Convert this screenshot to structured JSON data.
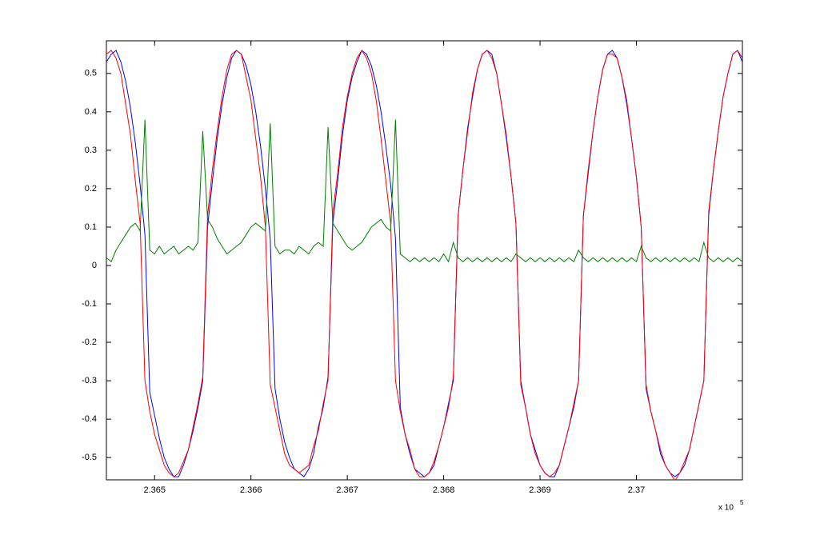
{
  "chart_data": {
    "type": "line",
    "x": [
      2.3645,
      2.36455,
      2.3646,
      2.36465,
      2.3647,
      2.36475,
      2.3648,
      2.36485,
      2.3649,
      2.36495,
      2.365,
      2.36505,
      2.3651,
      2.36515,
      2.3652,
      2.36525,
      2.3653,
      2.36535,
      2.3654,
      2.36545,
      2.3655,
      2.36555,
      2.3656,
      2.36565,
      2.3657,
      2.36575,
      2.3658,
      2.36585,
      2.3659,
      2.36595,
      2.366,
      2.36605,
      2.3661,
      2.36615,
      2.3662,
      2.36625,
      2.3663,
      2.36635,
      2.3664,
      2.36645,
      2.3665,
      2.36655,
      2.3666,
      2.36665,
      2.3667,
      2.36675,
      2.3668,
      2.36685,
      2.3669,
      2.36695,
      2.367,
      2.36705,
      2.3671,
      2.36715,
      2.3672,
      2.36725,
      2.3673,
      2.36735,
      2.3674,
      2.36745,
      2.3675,
      2.36755,
      2.3676,
      2.36765,
      2.3677,
      2.36775,
      2.3678,
      2.36785,
      2.3679,
      2.36795,
      2.368,
      2.36805,
      2.3681,
      2.36815,
      2.3682,
      2.36825,
      2.3683,
      2.36835,
      2.3684,
      2.36845,
      2.3685,
      2.36855,
      2.3686,
      2.36865,
      2.3687,
      2.36875,
      2.3688,
      2.36885,
      2.3689,
      2.36895,
      2.369,
      2.36905,
      2.3691,
      2.36915,
      2.3692,
      2.36925,
      2.3693,
      2.36935,
      2.3694,
      2.36945,
      2.3695,
      2.36955,
      2.3696,
      2.36965,
      2.3697,
      2.36975,
      2.3698,
      2.36985,
      2.3699,
      2.36995,
      2.37,
      2.37005,
      2.3701,
      2.37015,
      2.3702,
      2.37025,
      2.3703,
      2.37035,
      2.3704,
      2.37045,
      2.3705,
      2.37055,
      2.3706,
      2.37065,
      2.3707,
      2.37075,
      2.3708,
      2.37085,
      2.3709,
      2.37095,
      2.371,
      2.37105,
      2.3711
    ],
    "series": [
      {
        "color": "#0000ff",
        "values": [
          0.53,
          0.55,
          0.56,
          0.53,
          0.48,
          0.41,
          0.32,
          0.21,
          0.08,
          -0.33,
          -0.39,
          -0.45,
          -0.5,
          -0.53,
          -0.55,
          -0.55,
          -0.52,
          -0.48,
          -0.43,
          -0.37,
          -0.3,
          0.1,
          0.22,
          0.33,
          0.42,
          0.49,
          0.54,
          0.56,
          0.55,
          0.52,
          0.47,
          0.4,
          0.31,
          0.2,
          0.07,
          -0.32,
          -0.4,
          -0.46,
          -0.5,
          -0.53,
          -0.54,
          -0.55,
          -0.53,
          -0.49,
          -0.42,
          -0.37,
          -0.29,
          0.11,
          0.22,
          0.34,
          0.43,
          0.49,
          0.53,
          0.56,
          0.55,
          0.52,
          0.47,
          0.4,
          0.31,
          0.21,
          0.07,
          -0.37,
          -0.44,
          -0.49,
          -0.53,
          -0.54,
          -0.55,
          -0.54,
          -0.52,
          -0.47,
          -0.42,
          -0.36,
          -0.3,
          0.13,
          0.25,
          0.36,
          0.44,
          0.51,
          0.55,
          0.56,
          0.55,
          0.5,
          0.42,
          0.33,
          0.23,
          0.11,
          -0.3,
          -0.37,
          -0.44,
          -0.48,
          -0.52,
          -0.54,
          -0.55,
          -0.55,
          -0.52,
          -0.47,
          -0.42,
          -0.37,
          -0.3,
          0.13,
          0.24,
          0.35,
          0.44,
          0.51,
          0.55,
          0.56,
          0.54,
          0.49,
          0.42,
          0.33,
          0.23,
          0.1,
          -0.32,
          -0.38,
          -0.43,
          -0.49,
          -0.52,
          -0.54,
          -0.55,
          -0.54,
          -0.52,
          -0.48,
          -0.42,
          -0.36,
          -0.3,
          0.13,
          0.25,
          0.35,
          0.44,
          0.5,
          0.55,
          0.56,
          0.53
        ]
      },
      {
        "color": "#ff0000",
        "values": [
          0.55,
          0.56,
          0.54,
          0.5,
          0.42,
          0.34,
          0.22,
          0.11,
          -0.3,
          -0.38,
          -0.44,
          -0.48,
          -0.52,
          -0.54,
          -0.55,
          -0.54,
          -0.51,
          -0.48,
          -0.42,
          -0.36,
          -0.29,
          0.13,
          0.25,
          0.35,
          0.44,
          0.51,
          0.55,
          0.56,
          0.55,
          0.49,
          0.43,
          0.33,
          0.23,
          0.1,
          -0.31,
          -0.37,
          -0.43,
          -0.49,
          -0.52,
          -0.53,
          -0.54,
          -0.53,
          -0.52,
          -0.47,
          -0.43,
          -0.36,
          -0.3,
          0.14,
          0.24,
          0.36,
          0.44,
          0.5,
          0.54,
          0.56,
          0.54,
          0.5,
          0.43,
          0.33,
          0.22,
          0.11,
          -0.3,
          -0.38,
          -0.44,
          -0.48,
          -0.53,
          -0.55,
          -0.55,
          -0.54,
          -0.51,
          -0.47,
          -0.42,
          -0.37,
          -0.29,
          0.13,
          0.25,
          0.35,
          0.45,
          0.51,
          0.55,
          0.56,
          0.54,
          0.5,
          0.42,
          0.34,
          0.23,
          0.11,
          -0.31,
          -0.37,
          -0.44,
          -0.49,
          -0.52,
          -0.54,
          -0.55,
          -0.54,
          -0.52,
          -0.47,
          -0.42,
          -0.36,
          -0.3,
          0.13,
          0.25,
          0.35,
          0.44,
          0.51,
          0.55,
          0.55,
          0.54,
          0.49,
          0.43,
          0.33,
          0.23,
          0.1,
          -0.31,
          -0.38,
          -0.43,
          -0.48,
          -0.52,
          -0.54,
          -0.56,
          -0.54,
          -0.51,
          -0.48,
          -0.42,
          -0.36,
          -0.3,
          0.14,
          0.25,
          0.35,
          0.44,
          0.5,
          0.55,
          0.56,
          0.54
        ]
      },
      {
        "color": "#007f00",
        "values": [
          0.02,
          0.01,
          0.04,
          0.06,
          0.08,
          0.1,
          0.11,
          0.09,
          0.38,
          0.04,
          0.03,
          0.05,
          0.03,
          0.04,
          0.05,
          0.03,
          0.04,
          0.05,
          0.04,
          0.06,
          0.35,
          0.12,
          0.1,
          0.07,
          0.05,
          0.03,
          0.04,
          0.05,
          0.06,
          0.08,
          0.1,
          0.11,
          0.1,
          0.09,
          0.37,
          0.05,
          0.03,
          0.04,
          0.04,
          0.03,
          0.05,
          0.04,
          0.03,
          0.05,
          0.06,
          0.05,
          0.36,
          0.11,
          0.09,
          0.07,
          0.05,
          0.04,
          0.05,
          0.06,
          0.08,
          0.1,
          0.11,
          0.12,
          0.1,
          0.09,
          0.38,
          0.03,
          0.02,
          0.01,
          0.02,
          0.01,
          0.02,
          0.01,
          0.02,
          0.01,
          0.03,
          0.01,
          0.06,
          0.02,
          0.01,
          0.02,
          0.01,
          0.02,
          0.01,
          0.02,
          0.01,
          0.02,
          0.01,
          0.02,
          0.01,
          0.03,
          0.02,
          0.01,
          0.02,
          0.01,
          0.02,
          0.01,
          0.02,
          0.01,
          0.02,
          0.01,
          0.02,
          0.01,
          0.04,
          0.02,
          0.01,
          0.02,
          0.01,
          0.02,
          0.01,
          0.02,
          0.01,
          0.02,
          0.01,
          0.02,
          0.01,
          0.05,
          0.02,
          0.01,
          0.02,
          0.01,
          0.02,
          0.01,
          0.02,
          0.01,
          0.02,
          0.01,
          0.02,
          0.01,
          0.06,
          0.02,
          0.01,
          0.02,
          0.01,
          0.02,
          0.01,
          0.02,
          0.01
        ]
      }
    ],
    "xlim": [
      2.3645,
      2.3711
    ],
    "xticks": [
      2.365,
      2.366,
      2.367,
      2.368,
      2.369,
      2.37
    ],
    "ylim": [
      -0.558,
      0.585
    ],
    "yticks": [
      -0.5,
      -0.4,
      -0.3,
      -0.2,
      -0.1,
      0,
      0.1,
      0.2,
      0.3,
      0.4,
      0.5
    ],
    "x_multiplier": {
      "base": "x 10",
      "exponent": "5"
    },
    "grid": false
  }
}
